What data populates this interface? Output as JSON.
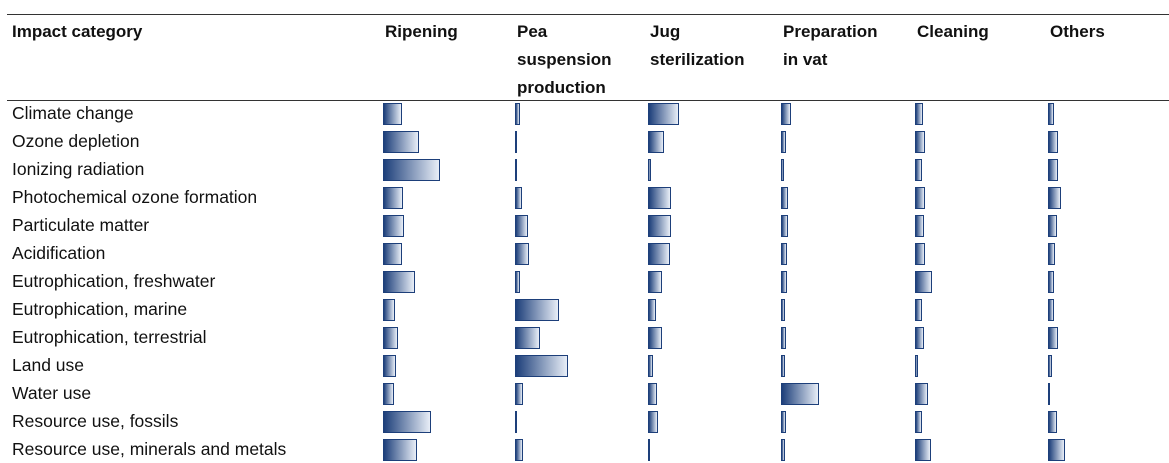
{
  "chart_data": {
    "type": "bar",
    "title": "",
    "columns": [
      "Impact category",
      "Ripening",
      "Pea suspension production",
      "Jug sterilization",
      "Preparation in vat",
      "Cleaning",
      "Others"
    ],
    "column_header_lines": [
      [
        "Impact category"
      ],
      [
        "Ripening"
      ],
      [
        "Pea",
        "suspension",
        "production"
      ],
      [
        "Jug",
        "sterilization"
      ],
      [
        "Preparation",
        "in vat"
      ],
      [
        "Cleaning"
      ],
      [
        "Others"
      ]
    ],
    "categories": [
      "Climate change",
      "Ozone depletion",
      "Ionizing radiation",
      "Photochemical ozone formation",
      "Particulate matter",
      "Acidification",
      "Eutrophication, freshwater",
      "Eutrophication, marine",
      "Eutrophication, terrestrial",
      "Land use",
      "Water use",
      "Resource use, fossils",
      "Resource use, minerals and metals"
    ],
    "series": [
      {
        "name": "Ripening",
        "values": [
          21,
          40,
          63,
          22,
          23,
          21,
          36,
          13,
          17,
          14,
          12,
          53,
          38
        ]
      },
      {
        "name": "Pea suspension production",
        "values": [
          6,
          2,
          1,
          8,
          14,
          16,
          6,
          49,
          28,
          59,
          9,
          2,
          9
        ]
      },
      {
        "name": "Jug sterilization",
        "values": [
          34,
          18,
          3,
          25,
          25,
          24,
          15,
          9,
          16,
          5,
          10,
          11,
          2
        ]
      },
      {
        "name": "Preparation in vat",
        "values": [
          11,
          6,
          3,
          8,
          8,
          7,
          7,
          4,
          6,
          4,
          42,
          5,
          4
        ]
      },
      {
        "name": "Cleaning",
        "values": [
          9,
          11,
          8,
          11,
          10,
          11,
          19,
          8,
          10,
          3,
          14,
          8,
          18
        ]
      },
      {
        "name": "Others",
        "values": [
          7,
          11,
          11,
          14,
          10,
          8,
          7,
          7,
          11,
          4,
          2,
          10,
          19
        ]
      }
    ],
    "scale_max": 100,
    "colors": {
      "bar_dark": "#1d3f7a",
      "bar_light": "#e8eef7",
      "border": "#1d3f7a",
      "rule": "#333333"
    },
    "grid": false,
    "legend": "none"
  }
}
